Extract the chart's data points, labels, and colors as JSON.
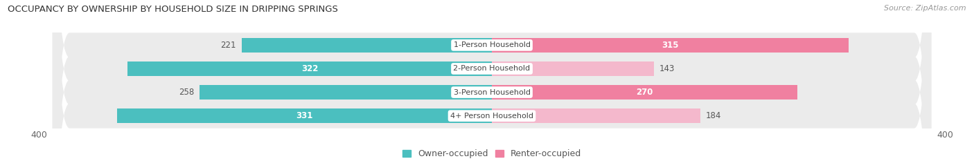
{
  "title": "OCCUPANCY BY OWNERSHIP BY HOUSEHOLD SIZE IN DRIPPING SPRINGS",
  "source": "Source: ZipAtlas.com",
  "categories": [
    "1-Person Household",
    "2-Person Household",
    "3-Person Household",
    "4+ Person Household"
  ],
  "owner_values": [
    221,
    322,
    258,
    331
  ],
  "renter_values": [
    315,
    143,
    270,
    184
  ],
  "owner_color": "#4BBFBF",
  "renter_color": "#F080A0",
  "renter_color_light": "#F4B8CC",
  "row_bg_color": "#E8E8E8",
  "x_max": 400,
  "x_min": -400,
  "bar_height": 0.62,
  "axis_label_fontsize": 9,
  "title_fontsize": 9.5,
  "bar_label_fontsize": 8.5,
  "category_fontsize": 8,
  "legend_fontsize": 9,
  "source_fontsize": 8,
  "inside_label_threshold_owner": 260,
  "inside_label_threshold_renter": 200
}
